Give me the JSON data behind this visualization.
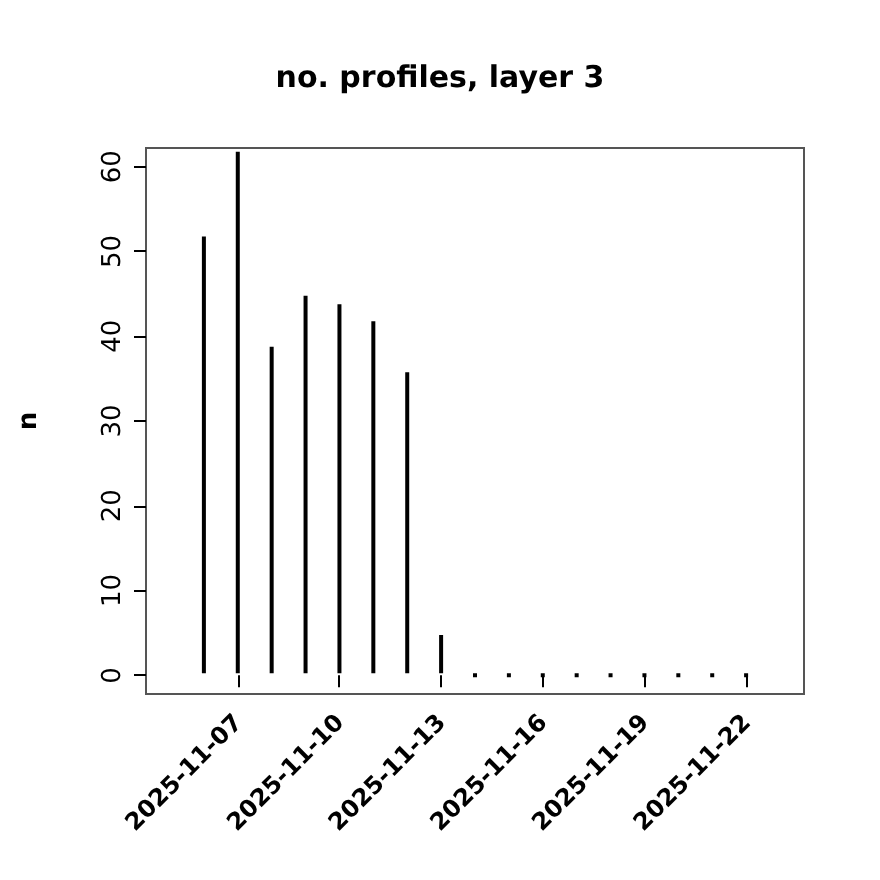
{
  "chart_data": {
    "type": "bar",
    "title": "no. profiles, layer 3",
    "ylabel": "n",
    "x": [
      "2025-11-06",
      "2025-11-07",
      "2025-11-08",
      "2025-11-09",
      "2025-11-10",
      "2025-11-11",
      "2025-11-12",
      "2025-11-13",
      "2025-11-14",
      "2025-11-15",
      "2025-11-16",
      "2025-11-17",
      "2025-11-18",
      "2025-11-19",
      "2025-11-20",
      "2025-11-21",
      "2025-11-22"
    ],
    "values": [
      52,
      62,
      39,
      45,
      44,
      42,
      36,
      5,
      0,
      0,
      0,
      0,
      0,
      0,
      0,
      0,
      0
    ],
    "color": "#000000",
    "xlim": [
      "2025-11-04T07:00",
      "2025-11-23T17:00"
    ],
    "xticks": [
      "2025-11-07",
      "2025-11-10",
      "2025-11-13",
      "2025-11-16",
      "2025-11-19",
      "2025-11-22"
    ],
    "ylim": [
      -2.2,
      62.2
    ],
    "yticks": [
      0,
      10,
      20,
      30,
      40,
      50,
      60
    ],
    "grid": false
  }
}
